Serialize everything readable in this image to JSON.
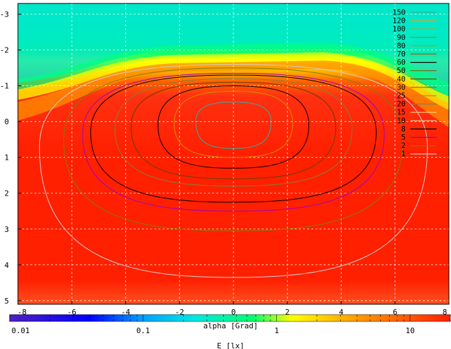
{
  "chart_data": {
    "type": "heatmap",
    "title": "",
    "x_axis": {
      "label": "alpha [Grad]",
      "range": [
        -8,
        8
      ],
      "ticks": [
        -8,
        -6,
        -4,
        -2,
        0,
        2,
        4,
        6,
        8
      ],
      "tick_labels": [
        "-8",
        "-6",
        "-4",
        "-2",
        "0",
        "2",
        "4",
        "6",
        "8"
      ]
    },
    "y_axis": {
      "label": "",
      "range": [
        -3.3,
        5.1
      ],
      "reversed": true,
      "ticks": [
        -3,
        -2,
        -1,
        0,
        1,
        2,
        3,
        4,
        5
      ],
      "tick_labels": [
        "-3",
        "-2",
        "-1",
        "0",
        "1",
        "2",
        "3",
        "4",
        "5"
      ]
    },
    "grid": true,
    "colorbar": {
      "label": "E [lx]",
      "scale": "log",
      "range": [
        0.01,
        20
      ],
      "tick_labels": [
        "0.01",
        "0.1",
        "1",
        "10"
      ],
      "tick_values": [
        0.01,
        0.1,
        1,
        10
      ],
      "colors": [
        "#5000c0",
        "#0000ff",
        "#00c0ff",
        "#00ff80",
        "#ffff00",
        "#ffa000",
        "#ff2000"
      ]
    },
    "legend": {
      "placement": "top-right",
      "entries": [
        {
          "label": "150",
          "color": "#30b0a0"
        },
        {
          "label": "120",
          "color": "#e0a030"
        },
        {
          "label": "100",
          "color": "#c0a020"
        },
        {
          "label": "90",
          "color": "#909000"
        },
        {
          "label": "80",
          "color": "#d09000"
        },
        {
          "label": "70",
          "color": "#a06000"
        },
        {
          "label": "60",
          "color": "#000000"
        },
        {
          "label": "50",
          "color": "#806000"
        },
        {
          "label": "40",
          "color": "#604000"
        },
        {
          "label": "30",
          "color": "#a07000"
        },
        {
          "label": "25",
          "color": "#c08040"
        },
        {
          "label": "20",
          "color": "#808040"
        },
        {
          "label": "15",
          "color": "#ffd080"
        },
        {
          "label": "10",
          "color": "#e0c090"
        },
        {
          "label": "8",
          "color": "#000000"
        },
        {
          "label": "5",
          "color": "#a000c0"
        },
        {
          "label": "2",
          "color": "#808000"
        },
        {
          "label": "1",
          "color": "#d0d0d0"
        }
      ]
    },
    "contours": [
      {
        "level": 150,
        "cx": 0,
        "cy": 0.0,
        "rx": 1.4,
        "ry": 0.55,
        "bottom": 0.75
      },
      {
        "level": 80,
        "cx": 0,
        "cy": 0.05,
        "rx": 2.2,
        "ry": 0.9,
        "bottom": 1.0
      },
      {
        "level": 60,
        "cx": 0,
        "cy": 0.1,
        "rx": 2.8,
        "ry": 1.1,
        "bottom": 1.3
      },
      {
        "level": 40,
        "cx": 0,
        "cy": 0.15,
        "rx": 3.8,
        "ry": 1.25,
        "bottom": 1.6
      },
      {
        "level": 20,
        "cx": 0,
        "cy": 0.2,
        "rx": 4.4,
        "ry": 1.4,
        "bottom": 1.8
      },
      {
        "level": 8,
        "cx": 0,
        "cy": 0.3,
        "rx": 5.3,
        "ry": 1.6,
        "bottom": 2.25
      },
      {
        "level": 5,
        "cx": 0,
        "cy": 0.35,
        "rx": 5.6,
        "ry": 1.7,
        "bottom": 2.5
      },
      {
        "level": 2,
        "cx": 0,
        "cy": 0.5,
        "rx": 6.3,
        "ry": 2.0,
        "bottom": 3.05
      },
      {
        "level": 1,
        "cx": 0,
        "cy": 0.7,
        "rx": 7.2,
        "ry": 2.3,
        "bottom": 4.35
      }
    ]
  }
}
